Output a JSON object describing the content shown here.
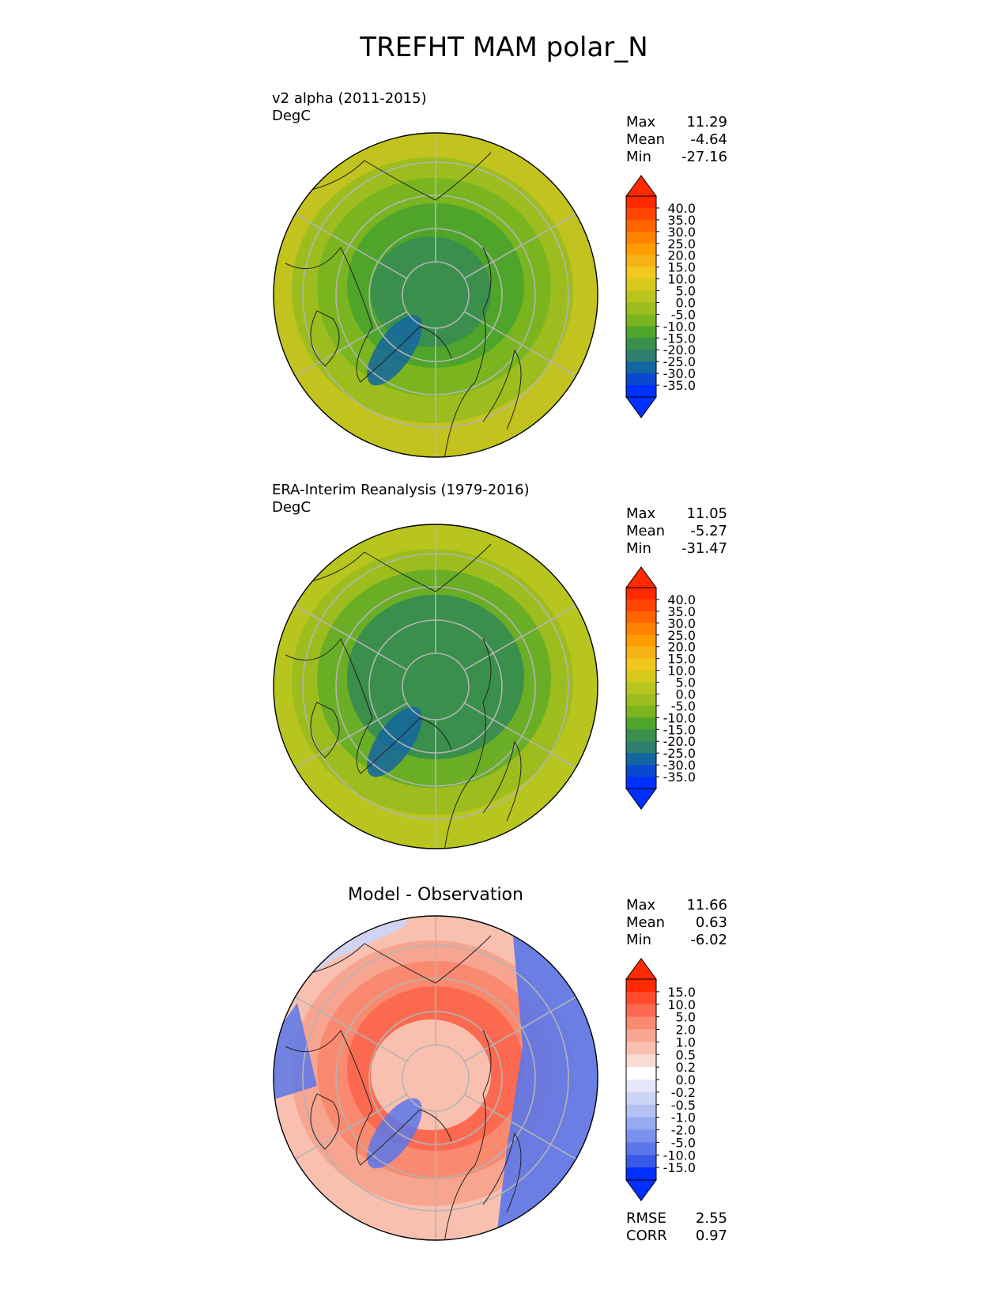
{
  "title": "TREFHT MAM polar_N",
  "panels": [
    {
      "id": "test",
      "title_line1": "v2 alpha (2011-2015)",
      "title_line2": "DegC",
      "stats": [
        {
          "label": "Max",
          "value": "11.29"
        },
        {
          "label": "Mean",
          "value": "-4.64"
        },
        {
          "label": "Min",
          "value": "-27.16"
        }
      ],
      "colorbar_ticks": [
        "40.0",
        "35.0",
        "30.0",
        "25.0",
        "20.0",
        "15.0",
        "10.0",
        "5.0",
        "0.0",
        "-5.0",
        "-10.0",
        "-15.0",
        "-20.0",
        "-25.0",
        "-30.0",
        "-35.0"
      ],
      "colorbar_colors": [
        "#ff2a00",
        "#ff4500",
        "#ff6400",
        "#ff8200",
        "#ff9d00",
        "#f7b217",
        "#f0c81e",
        "#d9c81e",
        "#b8c51e",
        "#9dbd1e",
        "#7ab520",
        "#4ea52a",
        "#3a8f4c",
        "#2f7f6f",
        "#1466a0",
        "#0a48d0",
        "#0030ff"
      ],
      "overflow_colors": {
        "top": "#ff2a00",
        "bottom": "#0030ff"
      }
    },
    {
      "id": "reference",
      "title_line1": "ERA-Interim Reanalysis (1979-2016)",
      "title_line2": "DegC",
      "stats": [
        {
          "label": "Max",
          "value": "11.05"
        },
        {
          "label": "Mean",
          "value": "-5.27"
        },
        {
          "label": "Min",
          "value": "-31.47"
        }
      ],
      "colorbar_ticks": [
        "40.0",
        "35.0",
        "30.0",
        "25.0",
        "20.0",
        "15.0",
        "10.0",
        "5.0",
        "0.0",
        "-5.0",
        "-10.0",
        "-15.0",
        "-20.0",
        "-25.0",
        "-30.0",
        "-35.0"
      ],
      "colorbar_colors": [
        "#ff2a00",
        "#ff4500",
        "#ff6400",
        "#ff8200",
        "#ff9d00",
        "#f7b217",
        "#f0c81e",
        "#d9c81e",
        "#b8c51e",
        "#9dbd1e",
        "#7ab520",
        "#4ea52a",
        "#3a8f4c",
        "#2f7f6f",
        "#1466a0",
        "#0a48d0",
        "#0030ff"
      ],
      "overflow_colors": {
        "top": "#ff2a00",
        "bottom": "#0030ff"
      }
    },
    {
      "id": "diff",
      "title_center": "Model - Observation",
      "stats": [
        {
          "label": "Max",
          "value": "11.66"
        },
        {
          "label": "Mean",
          "value": "0.63"
        },
        {
          "label": "Min",
          "value": "-6.02"
        }
      ],
      "colorbar_ticks": [
        "15.0",
        "10.0",
        "5.0",
        "2.0",
        "1.0",
        "0.5",
        "0.2",
        "0.0",
        "-0.2",
        "-0.5",
        "-1.0",
        "-2.0",
        "-5.0",
        "-10.0",
        "-15.0"
      ],
      "colorbar_colors": [
        "#ff2a00",
        "#ff4a30",
        "#fb6a50",
        "#f98a70",
        "#f7a590",
        "#f9c0b0",
        "#fbdcd2",
        "#ffffff",
        "#e4e8fa",
        "#cdd5f7",
        "#b3c1f4",
        "#97a9f1",
        "#7b91ee",
        "#5b77ea",
        "#3a5ae6",
        "#0030ff"
      ],
      "overflow_colors": {
        "top": "#ff2a00",
        "bottom": "#0030ff"
      },
      "metrics": [
        {
          "label": "RMSE",
          "value": "2.55"
        },
        {
          "label": "CORR",
          "value": "0.97"
        }
      ]
    }
  ],
  "map_colors": {
    "test": {
      "outer": "#c2c31e",
      "ring2": "#9dbd1e",
      "ring3": "#7ab520",
      "inner": "#4ea52a",
      "core": "#3a8f4c",
      "cold": "#1466a0"
    },
    "reference": {
      "outer": "#b8c51e",
      "ring2": "#9dbd1e",
      "ring3": "#6aae26",
      "inner": "#3a8f4c",
      "core": "#3a8f4c",
      "cold": "#1466a0"
    },
    "diff": {
      "outer": "#f9c0b0",
      "ring2": "#f7a590",
      "ring3": "#f98a70",
      "inner": "#fb6a50",
      "core": "#f9c0b0",
      "cold": "#5b77ea"
    }
  }
}
